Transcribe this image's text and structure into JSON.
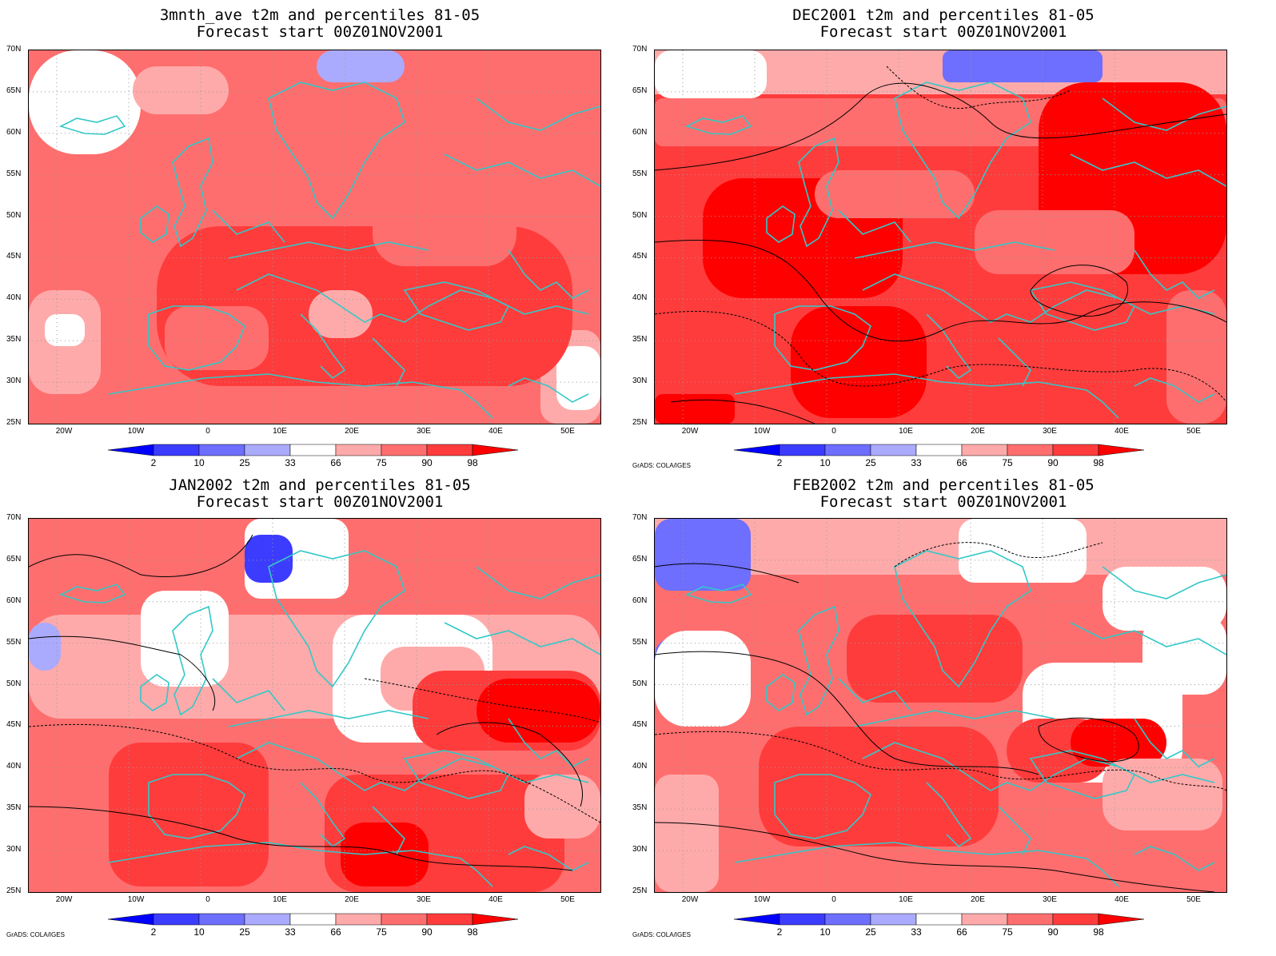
{
  "panels": [
    {
      "title_line1": "3mnth_ave t2m and percentiles 81-05",
      "title_line2": "Forecast start 00Z01NOV2001",
      "credit": ""
    },
    {
      "title_line1": "DEC2001 t2m and percentiles 81-05",
      "title_line2": "Forecast start 00Z01NOV2001",
      "credit": "GrADS: COLA/IGES"
    },
    {
      "title_line1": "JAN2002 t2m and percentiles 81-05",
      "title_line2": "Forecast start 00Z01NOV2001",
      "credit": "GrADS: COLA/IGES"
    },
    {
      "title_line1": "FEB2002 t2m and percentiles 81-05",
      "title_line2": "Forecast start 00Z01NOV2001",
      "credit": "GrADS: COLA/IGES"
    }
  ],
  "latitude_labels": [
    "70N",
    "65N",
    "60N",
    "55N",
    "50N",
    "45N",
    "40N",
    "35N",
    "30N",
    "25N"
  ],
  "longitude_labels": [
    "20W",
    "10W",
    "0",
    "10E",
    "20E",
    "30E",
    "40E",
    "50E"
  ],
  "colorbar": {
    "ticks": [
      "2",
      "10",
      "25",
      "33",
      "66",
      "75",
      "90",
      "98"
    ],
    "colors": [
      "#0000ff",
      "#3c3cff",
      "#6e6eff",
      "#aaaaff",
      "#ffffff",
      "#ffaaaa",
      "#ff6e6e",
      "#ff3c3c",
      "#ff0000"
    ]
  },
  "colors": {
    "coastline": "#33c8c8",
    "contour": "#000000",
    "grid": "#999999"
  }
}
